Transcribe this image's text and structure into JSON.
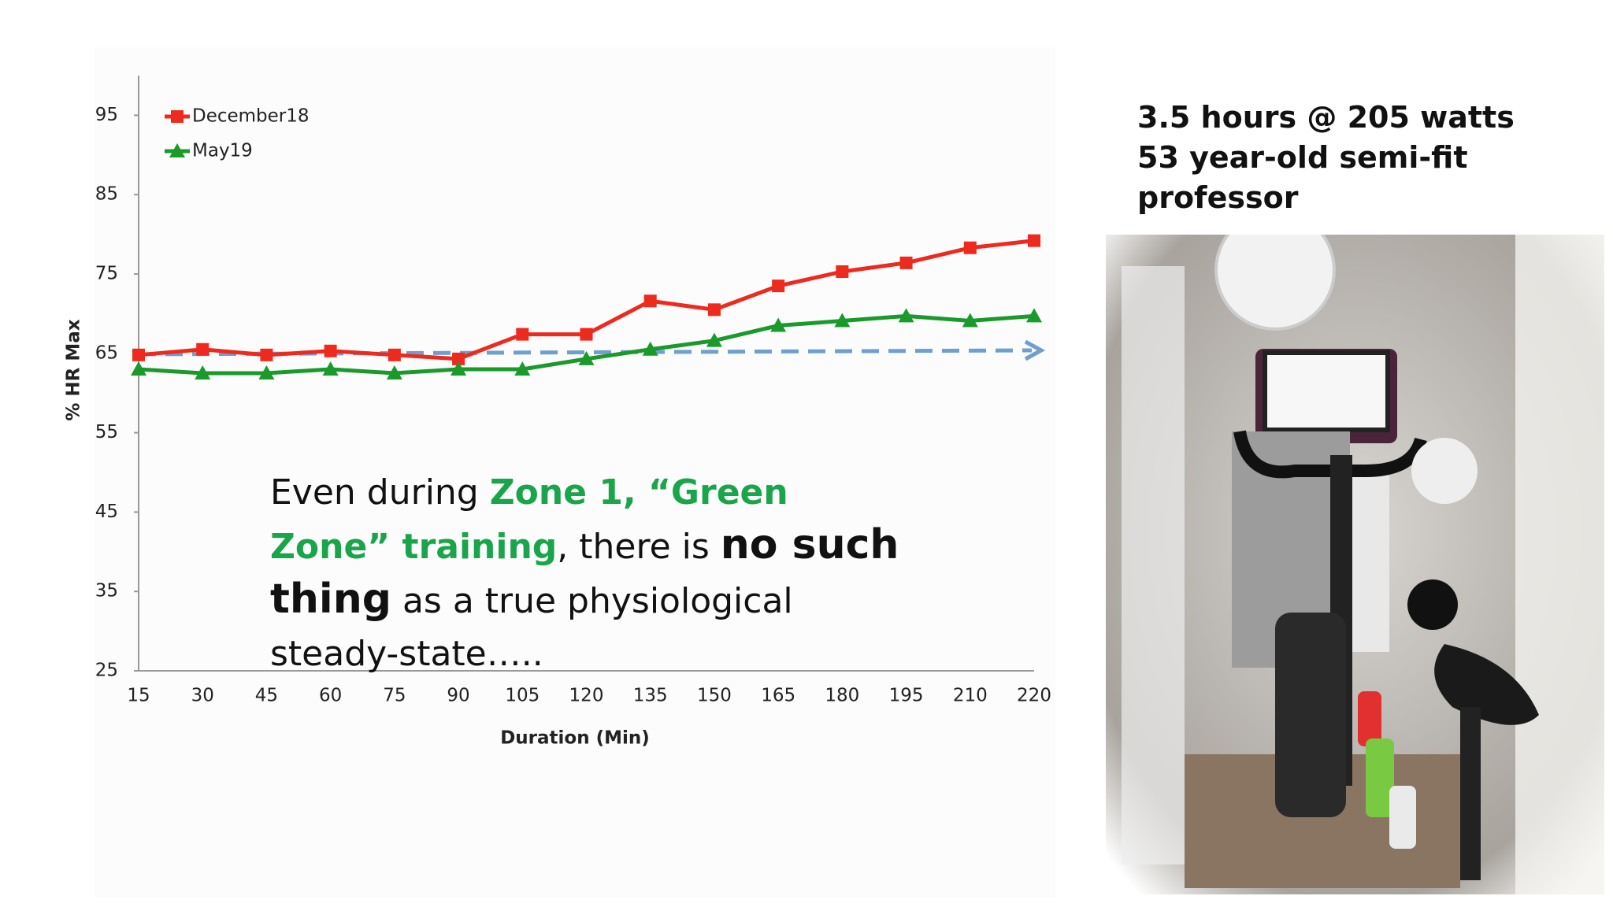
{
  "chart_data": {
    "type": "line",
    "x_label": "Duration (Min)",
    "y_label": "% HR Max",
    "categories": [
      "15",
      "30",
      "45",
      "60",
      "75",
      "90",
      "105",
      "120",
      "135",
      "150",
      "165",
      "180",
      "195",
      "210",
      "220"
    ],
    "series": [
      {
        "name": "December18",
        "color": "#ee2a1e",
        "marker": "square",
        "values": [
          64.8,
          65.5,
          64.8,
          65.3,
          64.8,
          64.3,
          67.4,
          67.4,
          71.6,
          70.5,
          73.5,
          75.3,
          76.4,
          78.3,
          79.2
        ]
      },
      {
        "name": "May19",
        "color": "#1a9a2a",
        "marker": "triangle",
        "values": [
          63.0,
          62.5,
          62.5,
          63.0,
          62.5,
          63.0,
          63.0,
          64.3,
          65.5,
          66.6,
          68.5,
          69.1,
          69.7,
          69.1,
          69.7
        ]
      }
    ],
    "ylim": [
      25,
      100
    ],
    "yticks": [
      25,
      35,
      45,
      55,
      65,
      75,
      85,
      95
    ],
    "legend": "upper left"
  },
  "annotation": {
    "segments": [
      {
        "text": "Even during ",
        "style": "plain"
      },
      {
        "text": "Zone 1, “Green Zone” training",
        "style": "green"
      },
      {
        "text": ", there is ",
        "style": "plain"
      },
      {
        "text": "no such thing",
        "style": "strong"
      },
      {
        "text": " as a true physiological steady-state…..",
        "style": "plain"
      }
    ]
  },
  "info": {
    "lines": [
      "3.5 hours @ 205 watts",
      "53 year-old semi-fit professor"
    ]
  }
}
